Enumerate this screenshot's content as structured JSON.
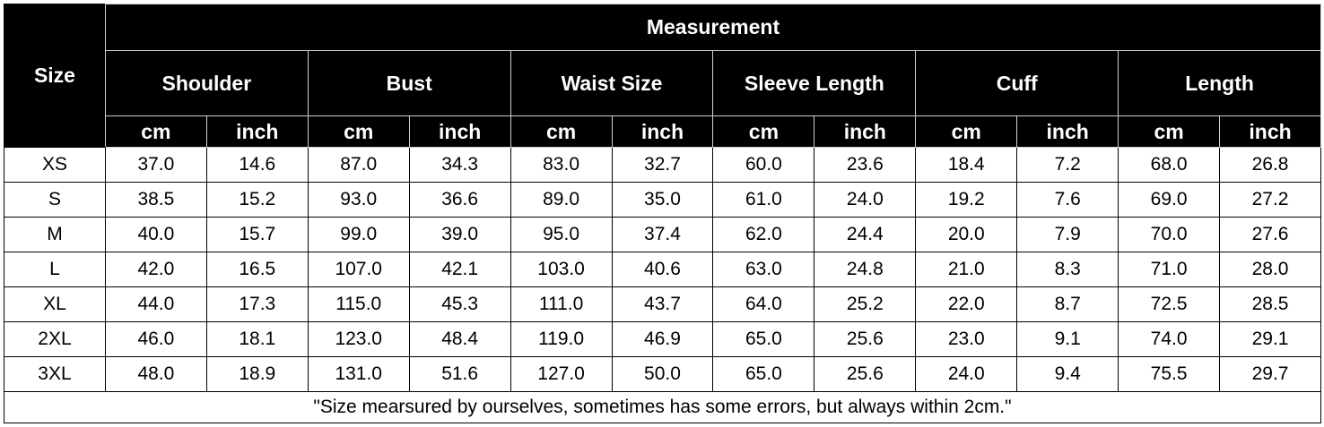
{
  "table": {
    "size_label": "Size",
    "title": "Measurement",
    "groups": [
      "Shoulder",
      "Bust",
      "Waist Size",
      "Sleeve Length",
      "Cuff",
      "Length"
    ],
    "units": [
      "cm",
      "inch"
    ],
    "rows": [
      [
        "XS",
        "37.0",
        "14.6",
        "87.0",
        "34.3",
        "83.0",
        "32.7",
        "60.0",
        "23.6",
        "18.4",
        "7.2",
        "68.0",
        "26.8"
      ],
      [
        "S",
        "38.5",
        "15.2",
        "93.0",
        "36.6",
        "89.0",
        "35.0",
        "61.0",
        "24.0",
        "19.2",
        "7.6",
        "69.0",
        "27.2"
      ],
      [
        "M",
        "40.0",
        "15.7",
        "99.0",
        "39.0",
        "95.0",
        "37.4",
        "62.0",
        "24.4",
        "20.0",
        "7.9",
        "70.0",
        "27.6"
      ],
      [
        "L",
        "42.0",
        "16.5",
        "107.0",
        "42.1",
        "103.0",
        "40.6",
        "63.0",
        "24.8",
        "21.0",
        "8.3",
        "71.0",
        "28.0"
      ],
      [
        "XL",
        "44.0",
        "17.3",
        "115.0",
        "45.3",
        "111.0",
        "43.7",
        "64.0",
        "25.2",
        "22.0",
        "8.7",
        "72.5",
        "28.5"
      ],
      [
        "2XL",
        "46.0",
        "18.1",
        "123.0",
        "48.4",
        "119.0",
        "46.9",
        "65.0",
        "25.6",
        "23.0",
        "9.1",
        "74.0",
        "29.1"
      ],
      [
        "3XL",
        "48.0",
        "18.9",
        "131.0",
        "51.6",
        "127.0",
        "50.0",
        "65.0",
        "25.6",
        "24.0",
        "9.4",
        "75.5",
        "29.7"
      ]
    ],
    "note": "\"Size mearsured by ourselves, sometimes has some errors, but always within 2cm.\""
  }
}
